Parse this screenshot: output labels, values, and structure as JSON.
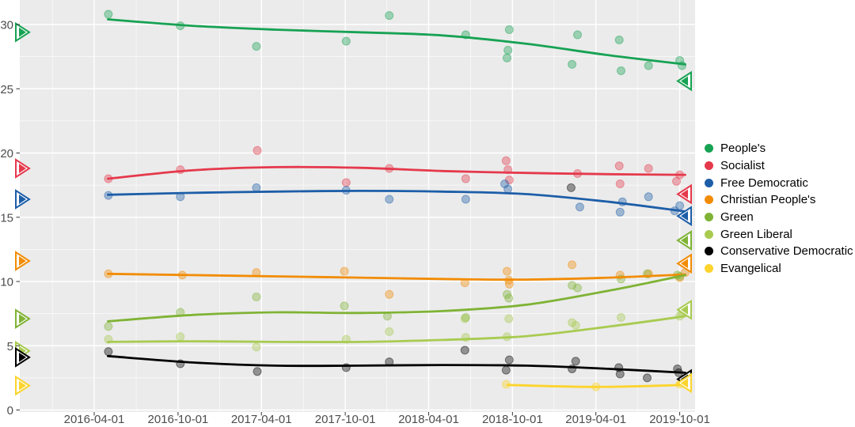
{
  "chart_data": {
    "type": "scatter",
    "title": "",
    "xlabel": "",
    "ylabel": "",
    "grid": true,
    "legend_position": "right",
    "panel_bg": "#EBEBEB",
    "grid_color": "#FFFFFF",
    "axis_text_color": "#4D4D4D",
    "x_axis": {
      "tick_labels": [
        "2016-04-01",
        "2016-10-01",
        "2017-04-01",
        "2017-10-01",
        "2018-04-01",
        "2018-10-01",
        "2019-04-01",
        "2019-10-01"
      ]
    },
    "y_axis": {
      "tick_labels": [
        "0",
        "5",
        "10",
        "15",
        "20",
        "25",
        "30"
      ],
      "tick_values": [
        0,
        5,
        10,
        15,
        20,
        25,
        30
      ],
      "range": [
        0,
        32
      ],
      "minor_ticks": [
        2.5,
        7.5,
        12.5,
        17.5,
        22.5,
        27.5
      ]
    },
    "trend_dates": [
      "2016-05-01",
      "2016-11-01",
      "2017-05-01",
      "2017-11-01",
      "2018-05-01",
      "2018-11-01",
      "2019-05-01",
      "2019-10-13"
    ],
    "series": [
      {
        "name": "People's",
        "color": "#17A253",
        "election_2015": 29.4,
        "election_2019": 25.6,
        "trend_values": [
          30.4,
          29.9,
          29.6,
          29.4,
          29.15,
          28.5,
          27.6,
          26.9
        ],
        "points": [
          [
            "2016-05-02",
            30.8
          ],
          [
            "2016-10-06",
            29.9
          ],
          [
            "2017-03-21",
            28.3
          ],
          [
            "2017-10-03",
            28.7
          ],
          [
            "2018-01-05",
            30.7
          ],
          [
            "2018-06-21",
            29.2
          ],
          [
            "2018-09-24",
            29.6
          ],
          [
            "2018-09-21",
            28.0
          ],
          [
            "2018-09-19",
            27.4
          ],
          [
            "2019-02-08",
            26.9
          ],
          [
            "2019-02-20",
            29.2
          ],
          [
            "2019-05-22",
            28.8
          ],
          [
            "2019-05-26",
            26.4
          ],
          [
            "2019-07-25",
            26.8
          ],
          [
            "2019-10-01",
            27.2
          ],
          [
            "2019-10-06",
            26.8
          ]
        ]
      },
      {
        "name": "Socialist",
        "color": "#E5394C",
        "election_2015": 18.8,
        "election_2019": 16.8,
        "trend_values": [
          18.0,
          18.65,
          18.9,
          18.85,
          18.6,
          18.45,
          18.35,
          18.3
        ],
        "points": [
          [
            "2016-05-02",
            18.0
          ],
          [
            "2016-10-06",
            18.7
          ],
          [
            "2017-03-23",
            20.2
          ],
          [
            "2017-10-03",
            17.7
          ],
          [
            "2018-01-05",
            18.8
          ],
          [
            "2018-06-21",
            18.0
          ],
          [
            "2018-09-17",
            19.4
          ],
          [
            "2018-09-21",
            18.7
          ],
          [
            "2018-09-24",
            17.9
          ],
          [
            "2019-02-20",
            18.4
          ],
          [
            "2019-05-22",
            19.0
          ],
          [
            "2019-05-24",
            17.6
          ],
          [
            "2019-07-25",
            18.8
          ],
          [
            "2019-09-24",
            17.8
          ],
          [
            "2019-10-01",
            18.3
          ]
        ]
      },
      {
        "name": "Free Democratic",
        "color": "#1D5EA8",
        "election_2015": 16.4,
        "election_2019": 15.1,
        "trend_values": [
          16.75,
          16.9,
          17.0,
          17.05,
          17.0,
          16.8,
          16.2,
          15.45
        ],
        "points": [
          [
            "2016-05-02",
            16.7
          ],
          [
            "2016-10-06",
            16.6
          ],
          [
            "2017-03-21",
            17.3
          ],
          [
            "2017-10-03",
            17.1
          ],
          [
            "2018-01-05",
            16.4
          ],
          [
            "2018-06-21",
            16.4
          ],
          [
            "2018-09-14",
            17.6
          ],
          [
            "2018-09-21",
            17.2
          ],
          [
            "2019-02-25",
            15.8
          ],
          [
            "2019-05-24",
            15.4
          ],
          [
            "2019-05-29",
            16.2
          ],
          [
            "2019-07-25",
            16.6
          ],
          [
            "2019-09-20",
            15.5
          ],
          [
            "2019-10-01",
            15.9
          ]
        ]
      },
      {
        "name": "Christian People's",
        "color": "#F28C05",
        "election_2015": 11.6,
        "election_2019": 11.4,
        "trend_values": [
          10.6,
          10.5,
          10.4,
          10.3,
          10.2,
          10.15,
          10.3,
          10.55
        ],
        "points": [
          [
            "2016-05-02",
            10.6
          ],
          [
            "2016-10-10",
            10.5
          ],
          [
            "2017-03-21",
            10.7
          ],
          [
            "2017-09-29",
            10.8
          ],
          [
            "2018-01-05",
            9.0
          ],
          [
            "2018-06-19",
            9.9
          ],
          [
            "2018-09-19",
            10.8
          ],
          [
            "2018-09-23",
            10.1
          ],
          [
            "2018-09-24",
            9.8
          ],
          [
            "2019-02-08",
            11.3
          ],
          [
            "2019-05-24",
            10.5
          ],
          [
            "2019-07-25",
            10.6
          ],
          [
            "2019-10-01",
            10.3
          ],
          [
            "2019-10-13",
            10.7
          ]
        ]
      },
      {
        "name": "Green",
        "color": "#7FB335",
        "election_2015": 7.1,
        "election_2019": 13.2,
        "trend_values": [
          6.9,
          7.4,
          7.6,
          7.55,
          7.7,
          8.2,
          9.3,
          10.5
        ],
        "points": [
          [
            "2016-05-02",
            6.5
          ],
          [
            "2016-10-06",
            7.6
          ],
          [
            "2017-03-21",
            8.8
          ],
          [
            "2017-09-29",
            8.1
          ],
          [
            "2018-01-01",
            7.3
          ],
          [
            "2018-06-21",
            7.2
          ],
          [
            "2018-09-19",
            9.0
          ],
          [
            "2018-09-23",
            8.7
          ],
          [
            "2019-02-08",
            9.7
          ],
          [
            "2019-02-20",
            9.5
          ],
          [
            "2019-05-26",
            10.2
          ],
          [
            "2019-07-22",
            10.6
          ],
          [
            "2019-09-26",
            10.5
          ],
          [
            "2019-10-01",
            10.4
          ]
        ]
      },
      {
        "name": "Green Liberal",
        "color": "#A8CB50",
        "election_2015": 4.6,
        "election_2019": 7.8,
        "trend_values": [
          5.3,
          5.35,
          5.3,
          5.3,
          5.45,
          5.75,
          6.5,
          7.3
        ],
        "points": [
          [
            "2016-05-02",
            5.5
          ],
          [
            "2016-10-06",
            5.7
          ],
          [
            "2017-03-21",
            4.9
          ],
          [
            "2017-10-03",
            5.5
          ],
          [
            "2018-01-05",
            6.1
          ],
          [
            "2018-06-19",
            7.1
          ],
          [
            "2018-06-21",
            5.65
          ],
          [
            "2018-09-19",
            5.7
          ],
          [
            "2018-09-23",
            7.1
          ],
          [
            "2019-02-08",
            6.8
          ],
          [
            "2019-02-16",
            6.6
          ],
          [
            "2019-05-26",
            7.2
          ],
          [
            "2019-10-01",
            7.3
          ],
          [
            "2019-10-06",
            7.5
          ]
        ]
      },
      {
        "name": "Conservative Democratic",
        "color": "#000000",
        "election_2015": 4.1,
        "election_2019": 2.4,
        "trend_values": [
          4.2,
          3.7,
          3.45,
          3.45,
          3.5,
          3.45,
          3.2,
          2.9
        ],
        "points": [
          [
            "2016-05-02",
            4.55
          ],
          [
            "2016-10-06",
            3.6
          ],
          [
            "2017-03-23",
            3.0
          ],
          [
            "2017-10-03",
            3.3
          ],
          [
            "2018-01-05",
            3.75
          ],
          [
            "2018-06-19",
            4.65
          ],
          [
            "2018-09-24",
            3.9
          ],
          [
            "2018-09-17",
            3.1
          ],
          [
            "2019-02-06",
            17.3
          ],
          [
            "2019-02-08",
            3.2
          ],
          [
            "2019-02-16",
            3.8
          ],
          [
            "2019-05-21",
            3.3
          ],
          [
            "2019-05-24",
            2.8
          ],
          [
            "2019-07-22",
            2.5
          ],
          [
            "2019-09-26",
            3.2
          ],
          [
            "2019-09-29",
            2.9
          ]
        ]
      },
      {
        "name": "Evangelical",
        "color": "#FCD42D",
        "election_2015": 1.9,
        "election_2019": 2.1,
        "trend_dates": [
          "2018-09-20",
          "2019-04-01",
          "2019-10-13"
        ],
        "trend_values": [
          1.95,
          1.8,
          1.95
        ],
        "points": [
          [
            "2018-09-17",
            2.0
          ],
          [
            "2019-04-01",
            1.8
          ],
          [
            "2019-10-01",
            2.0
          ]
        ]
      }
    ]
  }
}
